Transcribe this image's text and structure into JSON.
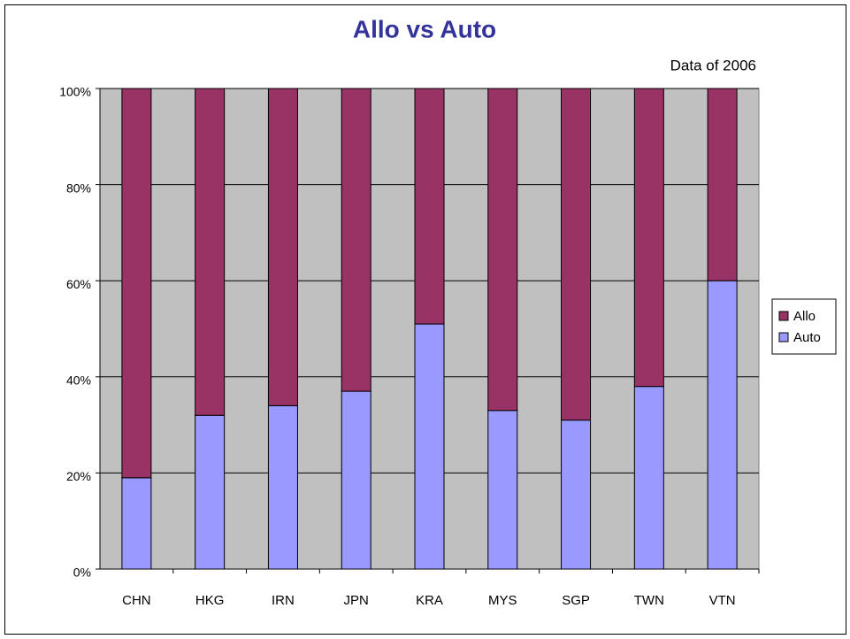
{
  "chart_data": {
    "type": "stacked_bar",
    "title": "Allo vs Auto",
    "subtitle": "Data of 2006",
    "categories": [
      "CHN",
      "HKG",
      "IRN",
      "JPN",
      "KRA",
      "MYS",
      "SGP",
      "TWN",
      "VTN"
    ],
    "series": [
      {
        "name": "Auto",
        "color": "#9999ff",
        "values": [
          19,
          32,
          34,
          37,
          51,
          33,
          31,
          38,
          60
        ]
      },
      {
        "name": "Allo",
        "color": "#993366",
        "values": [
          81,
          68,
          66,
          63,
          49,
          67,
          69,
          62,
          40
        ]
      }
    ],
    "ylim": [
      0,
      100
    ],
    "yticks": [
      {
        "value": 0,
        "label": "0%"
      },
      {
        "value": 20,
        "label": "20%"
      },
      {
        "value": 40,
        "label": "40%"
      },
      {
        "value": 60,
        "label": "60%"
      },
      {
        "value": 80,
        "label": "80%"
      },
      {
        "value": 100,
        "label": "100%"
      }
    ],
    "grid": true,
    "legend": "right",
    "plot_background": "#c0c0c0",
    "title_color": "#333399"
  }
}
